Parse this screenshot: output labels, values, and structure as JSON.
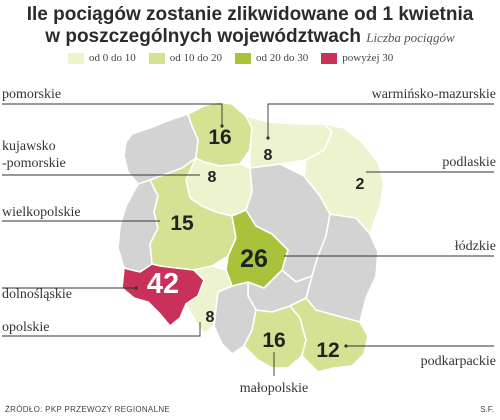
{
  "title": {
    "line1": "Ile pociągów zostanie zlikwidowane od 1 kwietnia",
    "line2": "w poszczególnych województwach",
    "subtitle": "Liczba pociągów"
  },
  "legend": [
    {
      "label": "od 0 do 10",
      "color": "#eef3cf"
    },
    {
      "label": "od 10 do 20",
      "color": "#d5e294"
    },
    {
      "label": "od 20 do 30",
      "color": "#a9c23c"
    },
    {
      "label": "powyżej 30",
      "color": "#c8325a"
    }
  ],
  "colors": {
    "other_regions": "#d3d3d3",
    "border": "#ffffff",
    "leader": "#333333"
  },
  "regions": [
    {
      "id": "pomorskie",
      "name": "pomorskie",
      "value": 16,
      "color": "#d5e294"
    },
    {
      "id": "warminsko",
      "name": "warmińsko-mazurskie",
      "value": 8,
      "color": "#eef3cf"
    },
    {
      "id": "kujawsko",
      "name": "kujawsko\n-pomorskie",
      "value": 8,
      "color": "#eef3cf"
    },
    {
      "id": "podlaskie",
      "name": "podlaskie",
      "value": 2,
      "color": "#eef3cf"
    },
    {
      "id": "wielkopolskie",
      "name": "wielkopolskie",
      "value": 15,
      "color": "#d5e294"
    },
    {
      "id": "lodzkie",
      "name": "łódzkie",
      "value": 26,
      "color": "#a9c23c"
    },
    {
      "id": "dolnoslaskie",
      "name": "dolnośląskie",
      "value": 42,
      "color": "#c8325a"
    },
    {
      "id": "opolskie",
      "name": "opolskie",
      "value": 8,
      "color": "#eef3cf"
    },
    {
      "id": "malopolskie",
      "name": "małopolskie",
      "value": 16,
      "color": "#d5e294"
    },
    {
      "id": "podkarpackie",
      "name": "podkarpackie",
      "value": 12,
      "color": "#d5e294"
    }
  ],
  "source": "ŹRÓDŁO: PKP PRZEWOZY REGIONALNE",
  "author": "S.F."
}
